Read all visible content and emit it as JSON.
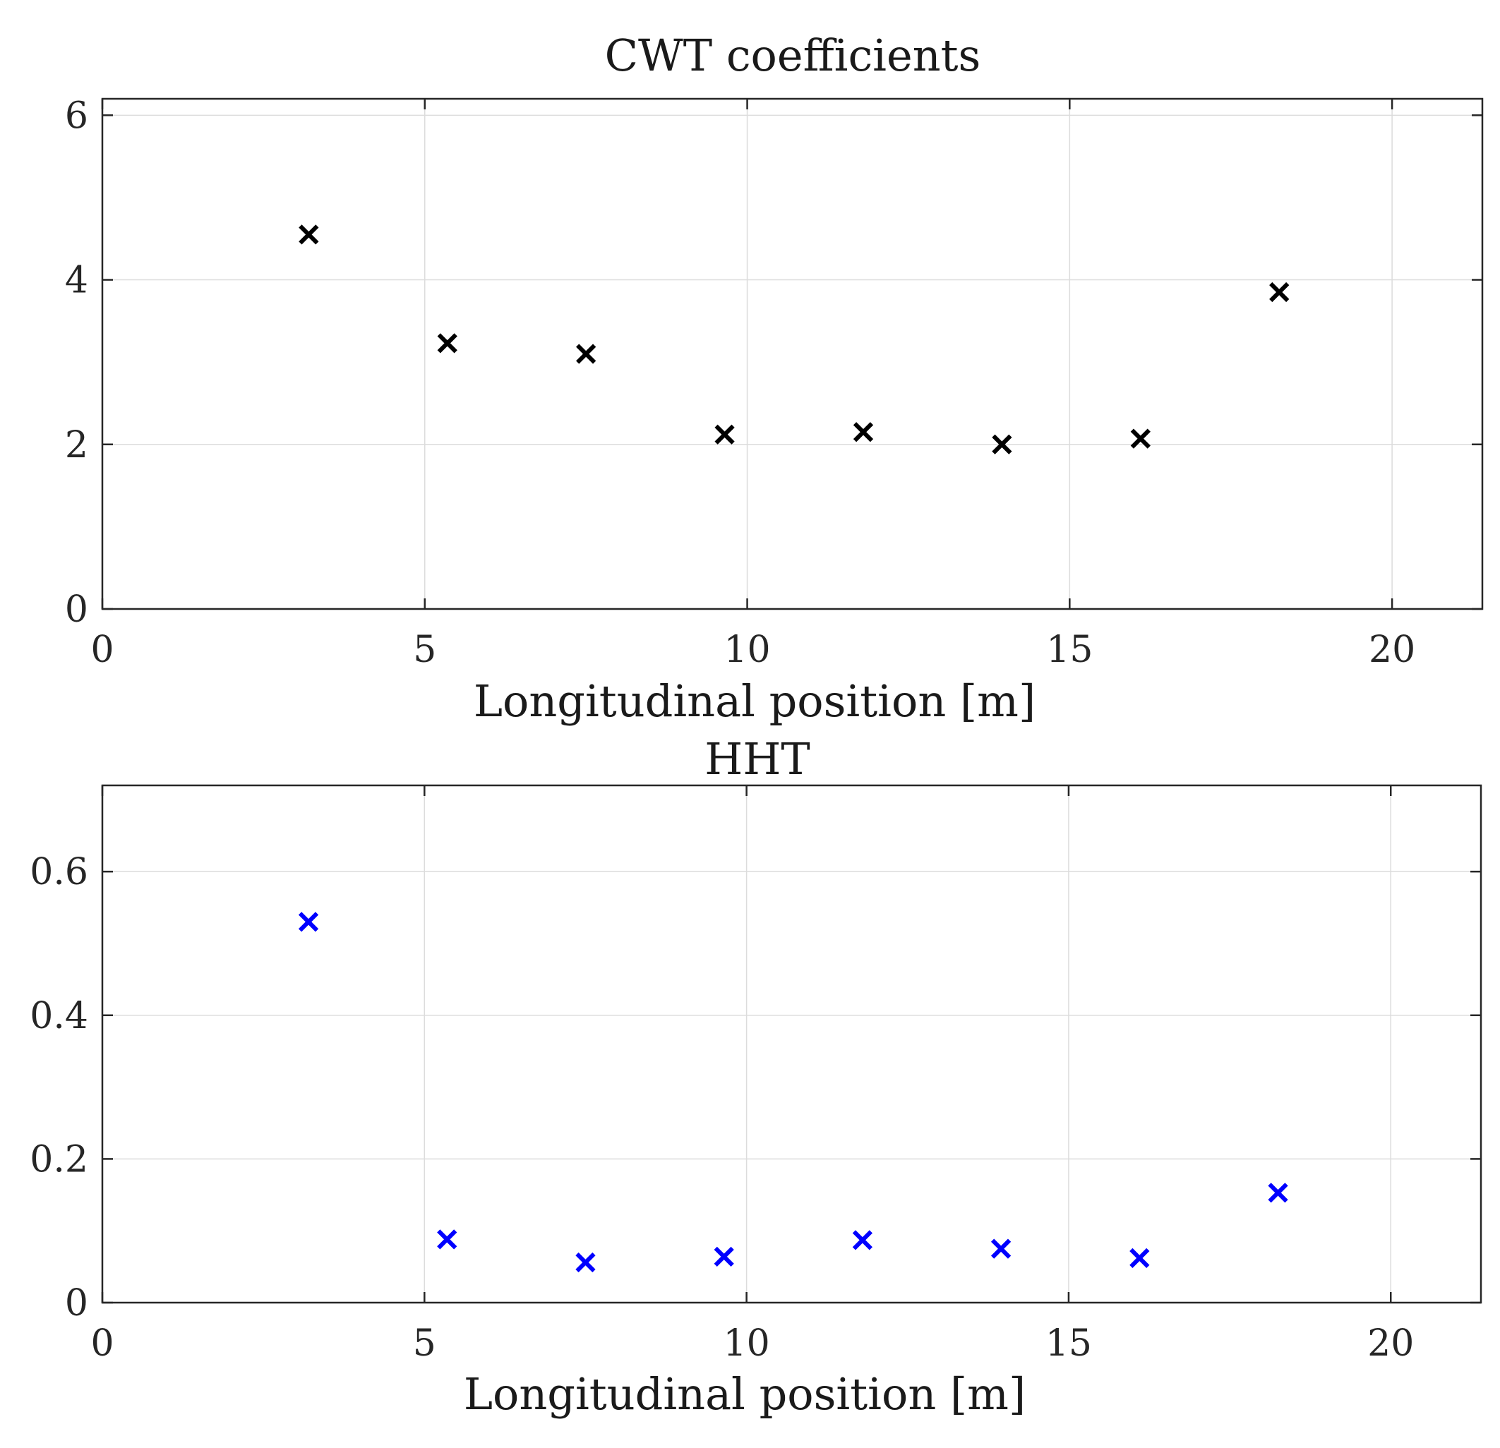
{
  "colors": {
    "cwt_marker": "#000000",
    "hht_marker": "#0000ff"
  },
  "chart_data": [
    {
      "type": "scatter",
      "title": "CWT coefficients",
      "xlabel": "Longitudinal position [m]",
      "ylabel": "",
      "xlim": [
        0,
        21.4
      ],
      "ylim": [
        0,
        6.2
      ],
      "xticks": [
        0,
        5,
        10,
        15,
        20
      ],
      "yticks": [
        0,
        2,
        4,
        6
      ],
      "xtick_labels": [
        "0",
        "5",
        "10",
        "15",
        "20"
      ],
      "ytick_labels": [
        "0",
        "2",
        "4",
        "6"
      ],
      "grid": true,
      "marker": "x",
      "color": "#000000",
      "x": [
        3.2,
        5.35,
        7.5,
        9.65,
        11.8,
        13.95,
        16.1,
        18.25
      ],
      "y": [
        4.55,
        3.23,
        3.1,
        2.12,
        2.15,
        2.0,
        2.07,
        3.85
      ]
    },
    {
      "type": "scatter",
      "title": "HHT",
      "xlabel": "Longitudinal position [m]",
      "ylabel": "",
      "xlim": [
        0,
        21.4
      ],
      "ylim": [
        0,
        0.72
      ],
      "xticks": [
        0,
        5,
        10,
        15,
        20
      ],
      "yticks": [
        0,
        0.2,
        0.4,
        0.6
      ],
      "xtick_labels": [
        "0",
        "5",
        "10",
        "15",
        "20"
      ],
      "ytick_labels": [
        "0",
        "0.2",
        "0.4",
        "0.6"
      ],
      "grid": true,
      "marker": "x",
      "color": "#0000ff",
      "x": [
        3.2,
        5.35,
        7.5,
        9.65,
        11.8,
        13.95,
        16.1,
        18.25
      ],
      "y": [
        0.53,
        0.088,
        0.056,
        0.064,
        0.087,
        0.075,
        0.062,
        0.153
      ]
    }
  ]
}
